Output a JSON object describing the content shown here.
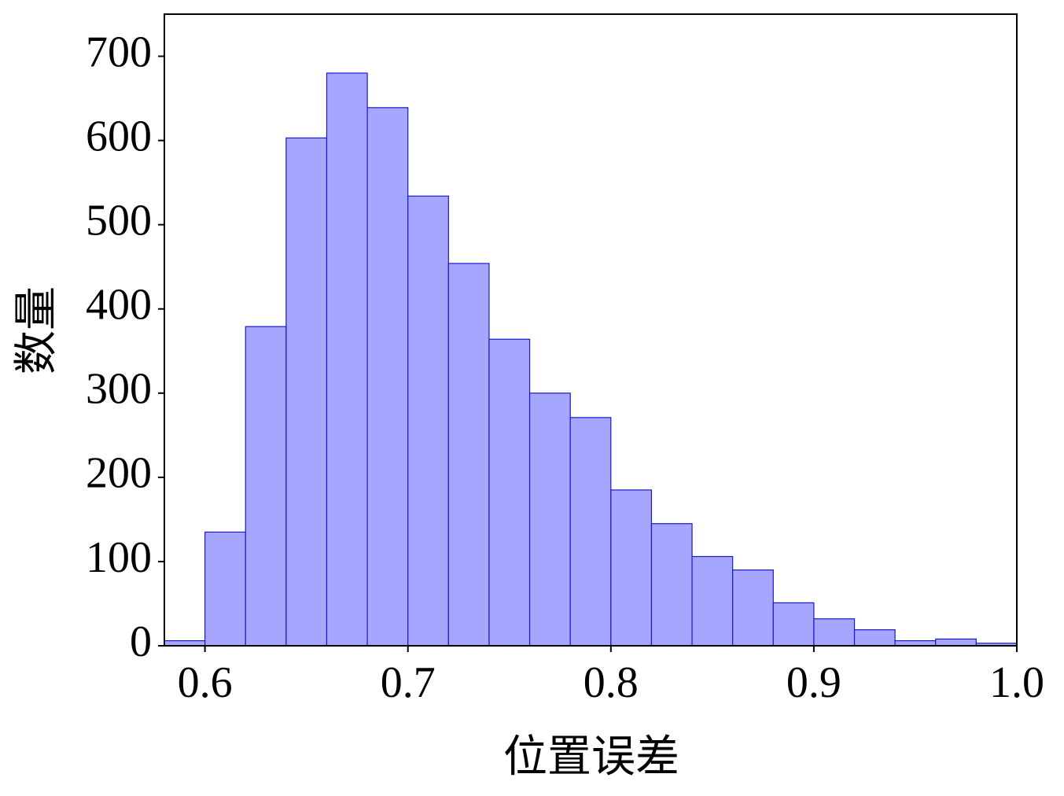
{
  "chart_data": {
    "type": "histogram",
    "xlabel": "位置误差",
    "ylabel": "数量",
    "bins": [
      0.58,
      0.6,
      0.62,
      0.64,
      0.66,
      0.68,
      0.7,
      0.72,
      0.74,
      0.76,
      0.78,
      0.8,
      0.82,
      0.84,
      0.86,
      0.88,
      0.9,
      0.92,
      0.94,
      0.96,
      0.98,
      1.0
    ],
    "counts": [
      6,
      135,
      379,
      603,
      680,
      639,
      534,
      454,
      364,
      300,
      271,
      185,
      145,
      106,
      90,
      51,
      32,
      19,
      6,
      8,
      3
    ],
    "color": "#a6a6ff",
    "edgecolor": "#1a1acc",
    "xlim": [
      0.58,
      1.0
    ],
    "xticks": [
      0.6,
      0.7,
      0.8,
      0.9,
      {
        "value": 1,
        "label": "1.0"
      }
    ],
    "ylim": [
      0,
      750
    ],
    "yticks": [
      0,
      100,
      200,
      300,
      400,
      500,
      600,
      700
    ]
  }
}
